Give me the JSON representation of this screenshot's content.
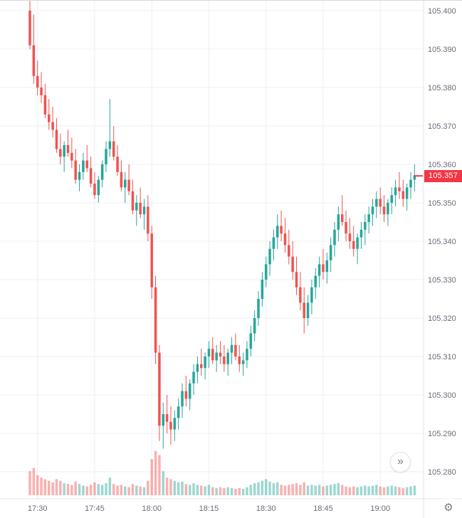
{
  "chart": {
    "last_price_label": "105.357",
    "colors": {
      "background": "#ffffff",
      "grid": "#edeff3",
      "axis_line": "#e0e3eb",
      "axis_text": "#696d78",
      "up": "#26a69a",
      "down": "#ef5350",
      "volume_up": "rgba(38,166,154,0.45)",
      "volume_down": "rgba(239,83,80,0.45)",
      "last_price": "#f23645",
      "badge_bg": "#f23645",
      "badge_text": "#ffffff"
    },
    "price_axis": {
      "max": 105.4,
      "min": 105.28,
      "step": 0.01,
      "labels": [
        "105.400",
        "105.390",
        "105.380",
        "105.370",
        "105.360",
        "105.350",
        "105.340",
        "105.330",
        "105.320",
        "105.310",
        "105.300",
        "105.290",
        "105.280"
      ]
    },
    "time_axis": {
      "labels": [
        "17:30",
        "17:45",
        "18:00",
        "18:15",
        "18:30",
        "18:45",
        "19:00"
      ],
      "candle_indices": [
        2,
        17,
        32,
        47,
        62,
        77,
        92
      ]
    },
    "icons": {
      "go_to_realtime": "»",
      "gear": "⚙"
    }
  },
  "chart_data": {
    "type": "candlestick",
    "title": "",
    "xlabel": "",
    "ylabel": "",
    "grid": true,
    "ylim": [
      105.276,
      105.404
    ],
    "x_tick_labels": [
      "17:30",
      "17:45",
      "18:00",
      "18:15",
      "18:30",
      "18:45",
      "19:00"
    ],
    "y_tick_labels": [
      "105.400",
      "105.390",
      "105.380",
      "105.370",
      "105.360",
      "105.350",
      "105.340",
      "105.330",
      "105.320",
      "105.310",
      "105.300",
      "105.290",
      "105.280"
    ],
    "last_close": 105.357,
    "candles_format": [
      "time",
      "open",
      "high",
      "low",
      "close",
      "volume"
    ],
    "candles": [
      [
        "17:28",
        105.4,
        105.403,
        105.39,
        105.391,
        30
      ],
      [
        "17:29",
        105.391,
        105.399,
        105.381,
        105.383,
        34
      ],
      [
        "17:30",
        105.383,
        105.387,
        105.378,
        105.38,
        25
      ],
      [
        "17:31",
        105.38,
        105.384,
        105.376,
        105.378,
        22
      ],
      [
        "17:32",
        105.378,
        105.381,
        105.372,
        105.373,
        20
      ],
      [
        "17:33",
        105.373,
        105.377,
        105.369,
        105.371,
        18
      ],
      [
        "17:34",
        105.371,
        105.375,
        105.367,
        105.369,
        16
      ],
      [
        "17:35",
        105.369,
        105.372,
        105.363,
        105.364,
        20
      ],
      [
        "17:36",
        105.364,
        105.368,
        105.36,
        105.362,
        18
      ],
      [
        "17:37",
        105.362,
        105.366,
        105.358,
        105.365,
        15
      ],
      [
        "17:38",
        105.365,
        105.369,
        105.362,
        105.363,
        14
      ],
      [
        "17:39",
        105.363,
        105.367,
        105.359,
        105.361,
        13
      ],
      [
        "17:40",
        105.361,
        105.364,
        105.355,
        105.356,
        17
      ],
      [
        "17:41",
        105.356,
        105.36,
        105.353,
        105.358,
        14
      ],
      [
        "17:42",
        105.358,
        105.363,
        105.356,
        105.361,
        12
      ],
      [
        "17:43",
        105.361,
        105.365,
        105.358,
        105.359,
        11
      ],
      [
        "17:44",
        105.359,
        105.362,
        105.354,
        105.355,
        13
      ],
      [
        "17:45",
        105.355,
        105.358,
        105.351,
        105.352,
        16
      ],
      [
        "17:46",
        105.352,
        105.357,
        105.35,
        105.356,
        14
      ],
      [
        "17:47",
        105.356,
        105.361,
        105.354,
        105.36,
        13
      ],
      [
        "17:48",
        105.36,
        105.366,
        105.358,
        105.364,
        15
      ],
      [
        "17:49",
        105.364,
        105.377,
        105.362,
        105.366,
        22
      ],
      [
        "17:50",
        105.366,
        105.37,
        105.361,
        105.362,
        14
      ],
      [
        "17:51",
        105.362,
        105.365,
        105.357,
        105.358,
        12
      ],
      [
        "17:52",
        105.358,
        105.361,
        105.353,
        105.354,
        13
      ],
      [
        "17:53",
        105.354,
        105.358,
        105.35,
        105.356,
        11
      ],
      [
        "17:54",
        105.356,
        105.36,
        105.352,
        105.353,
        10
      ],
      [
        "17:55",
        105.353,
        105.356,
        105.347,
        105.348,
        14
      ],
      [
        "17:56",
        105.348,
        105.352,
        105.344,
        105.35,
        12
      ],
      [
        "17:57",
        105.35,
        105.354,
        105.346,
        105.347,
        11
      ],
      [
        "17:58",
        105.347,
        105.351,
        105.343,
        105.349,
        10
      ],
      [
        "17:59",
        105.349,
        105.352,
        105.34,
        105.342,
        18
      ],
      [
        "18:00",
        105.342,
        105.344,
        105.325,
        105.328,
        45
      ],
      [
        "18:01",
        105.328,
        105.331,
        105.308,
        105.311,
        55
      ],
      [
        "18:02",
        105.311,
        105.313,
        105.288,
        105.292,
        50
      ],
      [
        "18:03",
        105.292,
        105.298,
        105.286,
        105.295,
        30
      ],
      [
        "18:04",
        105.295,
        105.3,
        105.29,
        105.293,
        22
      ],
      [
        "18:05",
        105.293,
        105.297,
        105.287,
        105.291,
        20
      ],
      [
        "18:06",
        105.291,
        105.296,
        105.288,
        105.294,
        18
      ],
      [
        "18:07",
        105.294,
        105.299,
        105.291,
        105.297,
        16
      ],
      [
        "18:08",
        105.297,
        105.303,
        105.294,
        105.301,
        17
      ],
      [
        "18:09",
        105.301,
        105.305,
        105.297,
        105.299,
        14
      ],
      [
        "18:10",
        105.299,
        105.304,
        105.296,
        105.303,
        13
      ],
      [
        "18:11",
        105.303,
        105.308,
        105.3,
        105.306,
        15
      ],
      [
        "18:12",
        105.306,
        105.31,
        105.303,
        105.308,
        13
      ],
      [
        "18:13",
        105.308,
        105.312,
        105.305,
        105.307,
        12
      ],
      [
        "18:14",
        105.307,
        105.311,
        105.304,
        105.31,
        11
      ],
      [
        "18:15",
        105.31,
        105.314,
        105.307,
        105.312,
        13
      ],
      [
        "18:16",
        105.312,
        105.315,
        105.308,
        105.309,
        10
      ],
      [
        "18:17",
        105.309,
        105.313,
        105.306,
        105.311,
        9
      ],
      [
        "18:18",
        105.311,
        105.314,
        105.308,
        105.31,
        10
      ],
      [
        "18:19",
        105.31,
        105.313,
        105.306,
        105.308,
        9
      ],
      [
        "18:20",
        105.308,
        105.312,
        105.305,
        105.311,
        10
      ],
      [
        "18:21",
        105.311,
        105.315,
        105.308,
        105.313,
        9
      ],
      [
        "18:22",
        105.313,
        105.316,
        105.309,
        105.31,
        8
      ],
      [
        "18:23",
        105.31,
        105.313,
        105.306,
        105.308,
        9
      ],
      [
        "18:24",
        105.308,
        105.311,
        105.305,
        105.309,
        8
      ],
      [
        "18:25",
        105.309,
        105.314,
        105.307,
        105.312,
        10
      ],
      [
        "18:26",
        105.312,
        105.318,
        105.31,
        105.316,
        13
      ],
      [
        "18:27",
        105.316,
        105.322,
        105.314,
        105.32,
        15
      ],
      [
        "18:28",
        105.32,
        105.327,
        105.318,
        105.325,
        16
      ],
      [
        "18:29",
        105.325,
        105.332,
        105.323,
        105.33,
        18
      ],
      [
        "18:30",
        105.33,
        105.336,
        105.328,
        105.334,
        20
      ],
      [
        "18:31",
        105.334,
        105.34,
        105.331,
        105.338,
        17
      ],
      [
        "18:32",
        105.338,
        105.343,
        105.335,
        105.341,
        15
      ],
      [
        "18:33",
        105.341,
        105.347,
        105.338,
        105.344,
        16
      ],
      [
        "18:34",
        105.344,
        105.348,
        105.34,
        105.342,
        13
      ],
      [
        "18:35",
        105.342,
        105.346,
        105.337,
        105.339,
        12
      ],
      [
        "18:36",
        105.339,
        105.343,
        105.334,
        105.336,
        13
      ],
      [
        "18:37",
        105.336,
        105.34,
        105.33,
        105.332,
        14
      ],
      [
        "18:38",
        105.332,
        105.336,
        105.326,
        105.328,
        15
      ],
      [
        "18:39",
        105.328,
        105.332,
        105.322,
        105.324,
        13
      ],
      [
        "18:40",
        105.324,
        105.328,
        105.316,
        105.32,
        16
      ],
      [
        "18:41",
        105.32,
        105.326,
        105.318,
        105.324,
        12
      ],
      [
        "18:42",
        105.324,
        105.33,
        105.321,
        105.328,
        13
      ],
      [
        "18:43",
        105.328,
        105.333,
        105.325,
        105.331,
        12
      ],
      [
        "18:44",
        105.331,
        105.336,
        105.328,
        105.334,
        13
      ],
      [
        "18:45",
        105.334,
        105.338,
        105.33,
        105.332,
        11
      ],
      [
        "18:46",
        105.332,
        105.337,
        105.329,
        105.335,
        12
      ],
      [
        "18:47",
        105.335,
        105.341,
        105.332,
        105.339,
        13
      ],
      [
        "18:48",
        105.339,
        105.345,
        105.336,
        105.343,
        14
      ],
      [
        "18:49",
        105.343,
        105.349,
        105.34,
        105.347,
        15
      ],
      [
        "18:50",
        105.347,
        105.352,
        105.344,
        105.345,
        13
      ],
      [
        "18:51",
        105.345,
        105.348,
        105.34,
        105.342,
        11
      ],
      [
        "18:52",
        105.342,
        105.346,
        105.338,
        105.34,
        10
      ],
      [
        "18:53",
        105.34,
        105.344,
        105.336,
        105.338,
        11
      ],
      [
        "18:54",
        105.338,
        105.342,
        105.334,
        105.341,
        10
      ],
      [
        "18:55",
        105.341,
        105.345,
        105.338,
        105.343,
        11
      ],
      [
        "18:56",
        105.343,
        105.347,
        105.339,
        105.345,
        12
      ],
      [
        "18:57",
        105.345,
        105.349,
        105.342,
        105.347,
        11
      ],
      [
        "18:58",
        105.347,
        105.351,
        105.344,
        105.349,
        12
      ],
      [
        "18:59",
        105.349,
        105.353,
        105.346,
        105.351,
        13
      ],
      [
        "19:00",
        105.351,
        105.354,
        105.347,
        105.349,
        11
      ],
      [
        "19:01",
        105.349,
        105.352,
        105.345,
        105.347,
        10
      ],
      [
        "19:02",
        105.347,
        105.351,
        105.344,
        105.35,
        11
      ],
      [
        "19:03",
        105.35,
        105.354,
        105.347,
        105.352,
        12
      ],
      [
        "19:04",
        105.352,
        105.356,
        105.349,
        105.354,
        11
      ],
      [
        "19:05",
        105.354,
        105.358,
        105.351,
        105.353,
        10
      ],
      [
        "19:06",
        105.353,
        105.356,
        105.349,
        105.351,
        9
      ],
      [
        "19:07",
        105.351,
        105.355,
        105.348,
        105.354,
        10
      ],
      [
        "19:08",
        105.354,
        105.358,
        105.351,
        105.356,
        11
      ],
      [
        "19:09",
        105.356,
        105.36,
        105.353,
        105.357,
        12
      ]
    ]
  }
}
